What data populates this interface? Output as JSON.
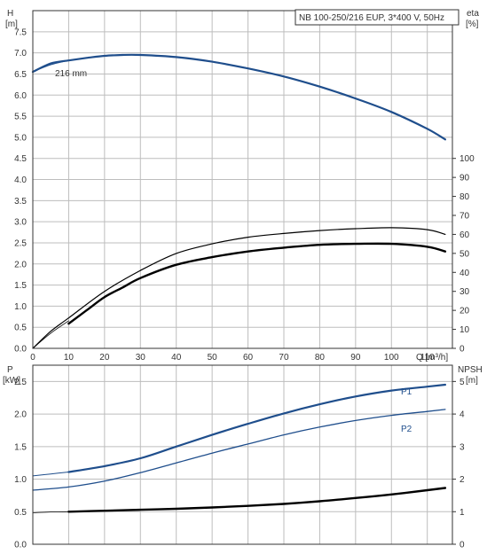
{
  "chart_data": [
    {
      "type": "line",
      "title": "NB 100-250/216 EUP, 3*400 V, 50Hz",
      "xlabel": "Q [m³/h]",
      "x_ticks": [
        0,
        10,
        20,
        30,
        40,
        50,
        60,
        70,
        80,
        90,
        100,
        110
      ],
      "xlim": [
        0,
        117
      ],
      "y_left": {
        "label_line1": "H",
        "label_line2": "[m]",
        "ylim": [
          0,
          8
        ],
        "ticks": [
          "0.0",
          "0.5",
          "1.0",
          "1.5",
          "2.0",
          "2.5",
          "3.0",
          "3.5",
          "4.0",
          "4.5",
          "5.0",
          "5.5",
          "6.0",
          "6.5",
          "7.0",
          "7.5"
        ]
      },
      "y_right": {
        "label_line1": "eta",
        "label_line2": "[%]",
        "ylim": [
          0,
          177.8
        ],
        "ticks": [
          "0",
          "10",
          "20",
          "30",
          "40",
          "50",
          "60",
          "70",
          "80",
          "90",
          "100"
        ]
      },
      "grid": true,
      "series": [
        {
          "name": "216 mm",
          "axis": "left",
          "color": "#1f4e8c",
          "width": 2.2,
          "x": [
            0,
            5,
            10,
            15,
            20,
            25,
            30,
            40,
            50,
            60,
            70,
            80,
            90,
            100,
            110,
            115
          ],
          "y": [
            6.55,
            6.75,
            6.82,
            6.88,
            6.93,
            6.95,
            6.95,
            6.9,
            6.79,
            6.63,
            6.44,
            6.2,
            5.92,
            5.6,
            5.2,
            4.95
          ]
        },
        {
          "axis": "left",
          "color": "#1f4e8c",
          "width": 1,
          "dashed_thin": true,
          "x": [
            0,
            5,
            10
          ],
          "y": [
            6.55,
            6.72,
            6.82
          ]
        },
        {
          "axis": "right",
          "color": "#000000",
          "width": 1.2,
          "x": [
            0,
            5,
            10,
            20,
            30,
            40,
            50,
            60,
            70,
            80,
            90,
            100,
            110,
            115
          ],
          "y": [
            0,
            9,
            16,
            30,
            41,
            50,
            55,
            58.5,
            60.5,
            62,
            63,
            63.5,
            62.5,
            60
          ]
        },
        {
          "axis": "right",
          "color": "#000000",
          "width": 2.4,
          "x": [
            10,
            15,
            20,
            25,
            30,
            40,
            50,
            60,
            70,
            80,
            90,
            100,
            110,
            115
          ],
          "y": [
            13,
            20,
            27,
            32,
            37,
            44,
            48,
            51,
            53,
            54.5,
            55,
            55,
            53.5,
            51
          ]
        },
        {
          "axis": "right",
          "color": "#000000",
          "width": 0.8,
          "x": [
            0,
            5,
            10
          ],
          "y": [
            0,
            8,
            14.5
          ]
        }
      ]
    },
    {
      "type": "line",
      "x_ticks": [
        0,
        10,
        20,
        30,
        40,
        50,
        60,
        70,
        80,
        90,
        100,
        110
      ],
      "xlim": [
        0,
        117
      ],
      "y_left": {
        "label_line1": "P",
        "label_line2": "[kW]",
        "ylim": [
          0,
          2.75
        ],
        "ticks": [
          "0.0",
          "0.5",
          "1.0",
          "1.5",
          "2.0",
          "2.5"
        ]
      },
      "y_right": {
        "label_line1": "NPSH",
        "label_line2": "[m]",
        "ylim": [
          0,
          5.5
        ],
        "ticks": [
          "0",
          "1",
          "2",
          "3",
          "4",
          "5"
        ]
      },
      "grid": true,
      "series": [
        {
          "name": "P1",
          "axis": "left",
          "color": "#1f4e8c",
          "width": 2.2,
          "x": [
            10,
            20,
            30,
            40,
            50,
            60,
            70,
            80,
            90,
            100,
            110,
            115
          ],
          "y": [
            1.11,
            1.2,
            1.32,
            1.5,
            1.68,
            1.85,
            2.01,
            2.15,
            2.27,
            2.36,
            2.42,
            2.45
          ]
        },
        {
          "axis": "left",
          "color": "#1f4e8c",
          "width": 1,
          "dashed_thin": true,
          "x": [
            0,
            5,
            10
          ],
          "y": [
            1.05,
            1.08,
            1.11
          ]
        },
        {
          "name": "P2",
          "axis": "left",
          "color": "#1f4e8c",
          "width": 1.3,
          "x": [
            0,
            10,
            20,
            30,
            40,
            50,
            60,
            70,
            80,
            90,
            100,
            110,
            115
          ],
          "y": [
            0.83,
            0.88,
            0.97,
            1.1,
            1.25,
            1.4,
            1.54,
            1.68,
            1.8,
            1.9,
            1.98,
            2.04,
            2.07
          ]
        },
        {
          "axis": "right",
          "color": "#000000",
          "width": 2.4,
          "x": [
            10,
            20,
            30,
            40,
            50,
            60,
            70,
            80,
            90,
            100,
            110,
            115
          ],
          "y": [
            1.0,
            1.03,
            1.06,
            1.09,
            1.13,
            1.18,
            1.24,
            1.32,
            1.42,
            1.53,
            1.66,
            1.73
          ]
        },
        {
          "axis": "right",
          "color": "#000000",
          "width": 0.8,
          "x": [
            0,
            5,
            10
          ],
          "y": [
            0.97,
            0.99,
            1.0
          ]
        }
      ]
    }
  ]
}
